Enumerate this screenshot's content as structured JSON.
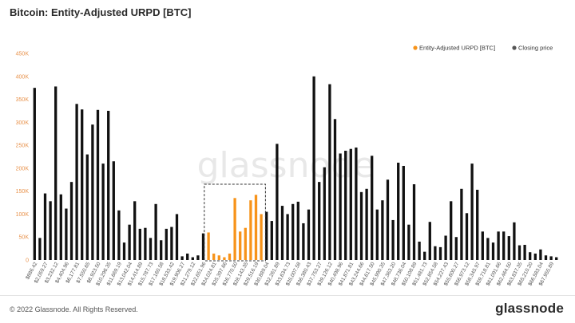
{
  "chart_title": "Bitcoin: Entity-Adjusted URPD [BTC]",
  "footer": {
    "copyright": "© 2022 Glassnode. All Rights Reserved.",
    "brand": "glassnode",
    "watermark": "glassnode"
  },
  "colors": {
    "bars": "#111111",
    "highlight": "#f7931a",
    "axis_text": "#e8914a",
    "highlight_box": "#333333"
  },
  "chart_data": {
    "type": "bar",
    "title": "Bitcoin: Entity-Adjusted URPD [BTC]",
    "xlabel": "",
    "ylabel": "",
    "ylim": [
      0,
      450000
    ],
    "yticks": [
      "0",
      "50K",
      "100K",
      "150K",
      "200K",
      "250K",
      "300K",
      "350K",
      "400K",
      "450K"
    ],
    "legend": [
      {
        "name": "Entity-Adjusted URPD [BTC]",
        "color": "#f7931a"
      },
      {
        "name": "Closing price",
        "color": "#555555"
      }
    ],
    "legend_position": "top-right",
    "x_tick_labels": [
      "$886.42",
      "$2,059.27",
      "$3,232.12",
      "$4,404.96",
      "$6,177.81",
      "$7,550.65",
      "$8,923.50",
      "$10,296.35",
      "$11,669.19",
      "$13,042.04",
      "$14,414.89",
      "$15,787.73",
      "$17,160.58",
      "$18,533.42",
      "$19,906.27",
      "$21,279.12",
      "$22,651.96",
      "$24,024.81",
      "$25,397.66",
      "$26,770.50",
      "$28,143.35",
      "$29,516.19",
      "$30,889.04",
      "$32,261.89",
      "$33,634.73",
      "$35,007.58",
      "$36,380.43",
      "$37,753.27",
      "$39,126.12",
      "$40,498.96",
      "$41,871.81",
      "$43,244.66",
      "$44,617.50",
      "$45,990.35",
      "$47,363.20",
      "$48,736.04",
      "$50,108.89",
      "$51,481.73",
      "$52,854.58",
      "$54,227.43",
      "$55,600.27",
      "$56,973.12",
      "$58,345.97",
      "$59,718.81",
      "$61,091.66",
      "$62,464.50",
      "$63,837.35",
      "$65,210.20",
      "$66,583.04",
      "$67,955.89"
    ],
    "highlight_range_indices": [
      33,
      43
    ],
    "values": [
      375000,
      48000,
      145000,
      128000,
      378000,
      143000,
      112000,
      170000,
      340000,
      328000,
      230000,
      295000,
      327000,
      210000,
      325000,
      215000,
      108000,
      38000,
      77000,
      128000,
      68000,
      70000,
      48000,
      122000,
      43000,
      68000,
      72000,
      100000,
      8000,
      14000,
      6000,
      10000,
      58000,
      60000,
      14000,
      10000,
      6000,
      14000,
      135000,
      62000,
      70000,
      130000,
      142000,
      100000,
      105000,
      85000,
      253000,
      118000,
      100000,
      122000,
      127000,
      80000,
      110000,
      400000,
      170000,
      202000,
      383000,
      307000,
      232000,
      238000,
      242000,
      245000,
      148000,
      155000,
      227000,
      110000,
      130000,
      175000,
      87000,
      212000,
      205000,
      77000,
      165000,
      40000,
      18000,
      83000,
      30000,
      28000,
      53000,
      128000,
      50000,
      155000,
      102000,
      210000,
      153000,
      62000,
      48000,
      38000,
      62000,
      62000,
      52000,
      82000,
      32000,
      33000,
      17000,
      14000,
      23000,
      10000,
      8000,
      6000
    ]
  }
}
